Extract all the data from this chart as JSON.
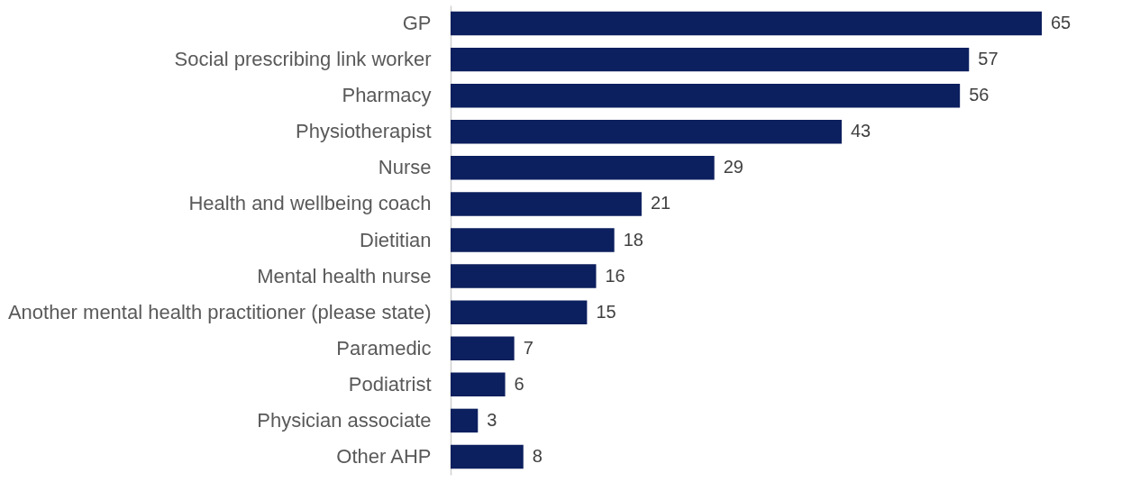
{
  "chart_data": {
    "type": "bar",
    "orientation": "horizontal",
    "categories": [
      "GP",
      "Social prescribing link worker",
      "Pharmacy",
      "Physiotherapist",
      "Nurse",
      "Health and wellbeing coach",
      "Dietitian",
      "Mental health nurse",
      "Another mental health practitioner (please state)",
      "Paramedic",
      "Podiatrist",
      "Physician associate",
      "Other AHP"
    ],
    "values": [
      65,
      57,
      56,
      43,
      29,
      21,
      18,
      16,
      15,
      7,
      6,
      3,
      8
    ],
    "color": "#0c1f5e",
    "data_labels": true
  }
}
